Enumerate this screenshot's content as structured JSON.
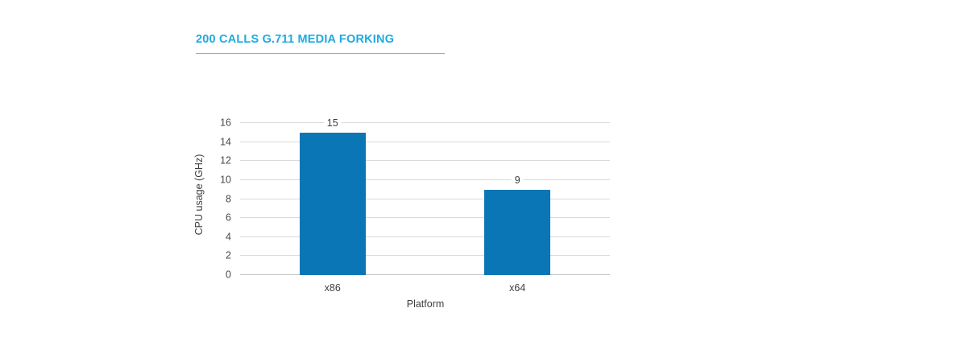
{
  "header": {
    "title": "200 CALLS G.711 MEDIA FORKING"
  },
  "chart_data": {
    "type": "bar",
    "title": "200 CALLS G.711 MEDIA FORKING",
    "categories": [
      "x86",
      "x64"
    ],
    "values": [
      15,
      9
    ],
    "data_labels": [
      "15",
      "9"
    ],
    "xlabel": "Platform",
    "ylabel": "CPU usage (GHz)",
    "ylim": [
      0,
      16
    ],
    "yticks": [
      0,
      2,
      4,
      6,
      8,
      10,
      12,
      14,
      16
    ],
    "grid": "horizontal",
    "legend_position": "none",
    "colors": {
      "bar": "#0B76B5",
      "title": "#1FA9E1",
      "gridline": "#DADADA",
      "baseline": "#C6C6C6",
      "text": "#3E3E3E",
      "underline": "#A9A9A9"
    }
  }
}
